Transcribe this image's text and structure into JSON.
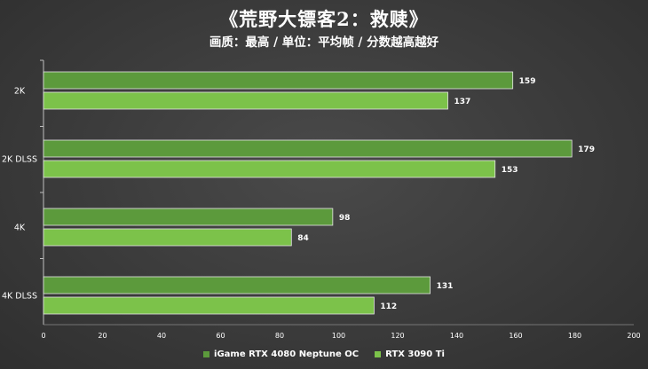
{
  "chart_data": {
    "type": "bar",
    "orientation": "horizontal",
    "title": "《荒野大镖客2：救赎》",
    "subtitle": "画质：最高 / 单位：平均帧 / 分数越高越好",
    "categories": [
      "2K",
      "2K DLSS",
      "4K",
      "4K DLSS"
    ],
    "series": [
      {
        "name": "iGame RTX 4080 Neptune OC",
        "color": "#5c9a3c",
        "values": [
          159,
          179,
          98,
          131
        ]
      },
      {
        "name": "RTX 3090 Ti",
        "color": "#7cc24a",
        "values": [
          137,
          153,
          84,
          112
        ]
      }
    ],
    "xlim": [
      0,
      200
    ],
    "ticks": [
      "0",
      "20",
      "40",
      "60",
      "80",
      "100",
      "120",
      "140",
      "160",
      "180",
      "200"
    ],
    "legend_position": "bottom",
    "grid": false
  }
}
